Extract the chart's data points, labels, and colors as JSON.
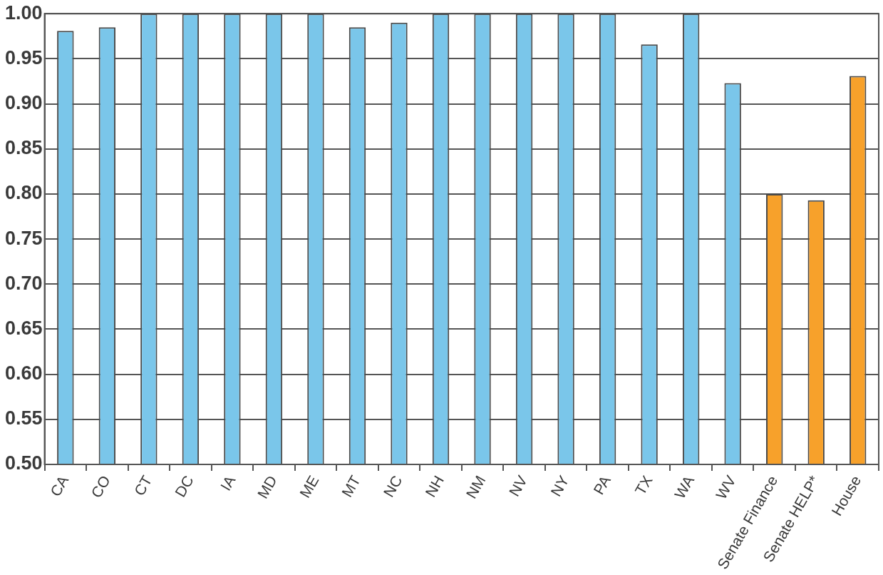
{
  "chart_data": {
    "type": "bar",
    "categories": [
      "CA",
      "CO",
      "CT",
      "DC",
      "IA",
      "MD",
      "ME",
      "MT",
      "NC",
      "NH",
      "NM",
      "NV",
      "NY",
      "PA",
      "TX",
      "WA",
      "WV",
      "Senate Finance",
      "Senate HELP*",
      "House"
    ],
    "values": [
      0.981,
      0.985,
      1,
      1,
      1,
      1,
      1,
      0.985,
      0.99,
      1,
      1,
      1,
      1,
      1,
      0.966,
      1,
      0.923,
      0.8,
      0.793,
      0.931
    ],
    "colors": [
      "#7ac6ea",
      "#7ac6ea",
      "#7ac6ea",
      "#7ac6ea",
      "#7ac6ea",
      "#7ac6ea",
      "#7ac6ea",
      "#7ac6ea",
      "#7ac6ea",
      "#7ac6ea",
      "#7ac6ea",
      "#7ac6ea",
      "#7ac6ea",
      "#7ac6ea",
      "#7ac6ea",
      "#7ac6ea",
      "#7ac6ea",
      "#f7a12b",
      "#f7a12b",
      "#f7a12b"
    ],
    "ylim": [
      0.5,
      1
    ],
    "yticks": [
      {
        "value": 0.5,
        "label": "0.50"
      },
      {
        "value": 0.55,
        "label": "0.55"
      },
      {
        "value": 0.6,
        "label": "0.60"
      },
      {
        "value": 0.65,
        "label": "0.65"
      },
      {
        "value": 0.7,
        "label": "0.70"
      },
      {
        "value": 0.75,
        "label": "0.75"
      },
      {
        "value": 0.8,
        "label": "0.80"
      },
      {
        "value": 0.85,
        "label": "0.85"
      },
      {
        "value": 0.9,
        "label": "0.90"
      },
      {
        "value": 0.95,
        "label": "0.95"
      },
      {
        "value": 1,
        "label": "1.00"
      }
    ],
    "grid": "y"
  }
}
